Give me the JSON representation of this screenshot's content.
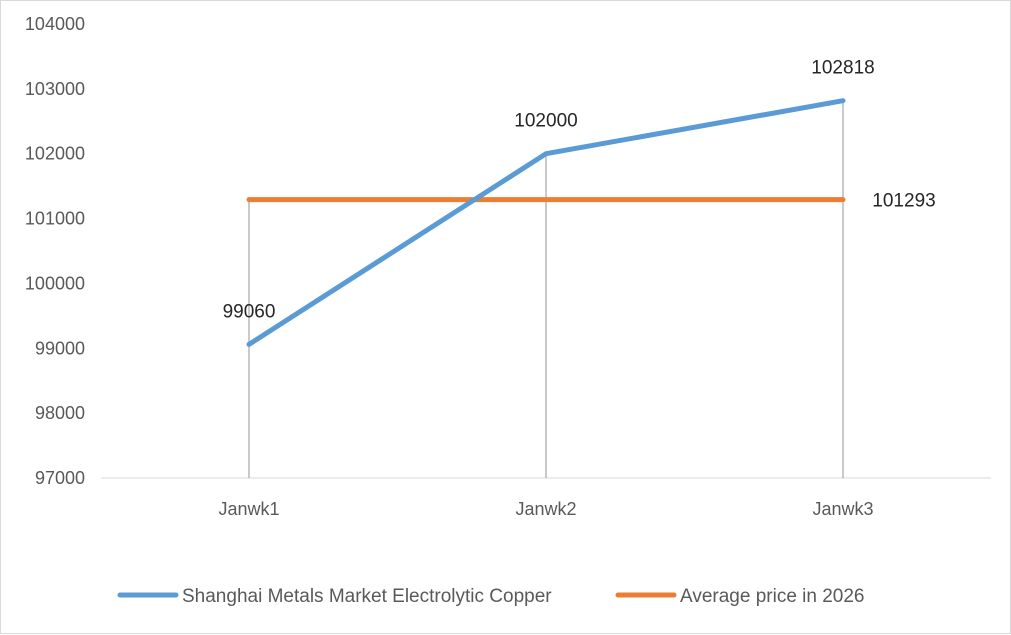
{
  "chart_data": {
    "type": "line",
    "categories": [
      "Janwk1",
      "Janwk2",
      "Janwk3"
    ],
    "ylim": [
      97000,
      104000
    ],
    "yticks": [
      97000,
      98000,
      99000,
      100000,
      101000,
      102000,
      103000,
      104000
    ],
    "grid": false,
    "legend": "bottom",
    "series": [
      {
        "name": "Shanghai Metals Market Electrolytic Copper",
        "values": [
          99060,
          102000,
          102818
        ],
        "labels": [
          "99060",
          "102000",
          "102818"
        ],
        "color": "#5b9bd5"
      },
      {
        "name": "Average price in 2026",
        "values": [
          101293,
          101293,
          101293
        ],
        "end_label": "101293",
        "color": "#ed7d31"
      }
    ]
  }
}
